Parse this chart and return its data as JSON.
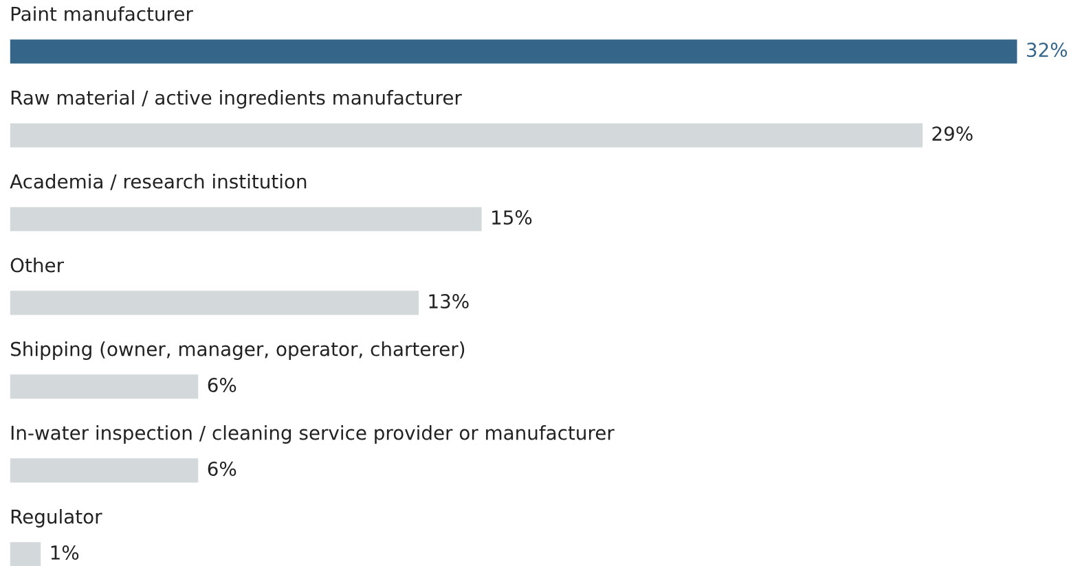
{
  "chart_data": {
    "type": "bar",
    "orientation": "horizontal",
    "categories": [
      "Paint manufacturer",
      "Raw material / active ingredients manufacturer",
      "Academia / research institution",
      "Other",
      "Shipping (owner, manager, operator, charterer)",
      "In-water inspection / cleaning service provider or manufacturer",
      "Regulator"
    ],
    "values": [
      32,
      29,
      15,
      13,
      6,
      6,
      1
    ],
    "colors": [
      "#35668a",
      "#d3d8db",
      "#d3d8db",
      "#d3d8db",
      "#d3d8db",
      "#d3d8db",
      "#d3d8db"
    ],
    "value_labels": [
      "32%",
      "29%",
      "15%",
      "13%",
      "6%",
      "6%",
      "1%"
    ]
  }
}
